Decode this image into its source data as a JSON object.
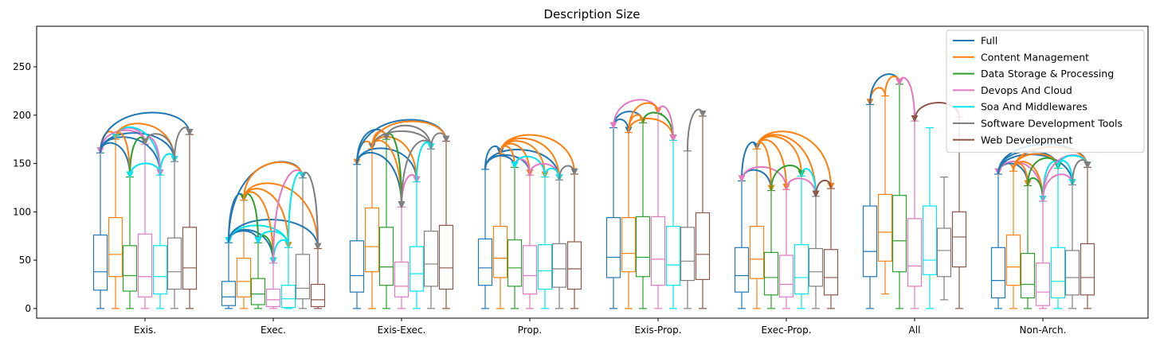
{
  "chart_data": {
    "type": "box",
    "title": "Description Size",
    "xlabel": "",
    "ylabel": "",
    "ylim": [
      -10,
      292
    ],
    "yticks": [
      0,
      50,
      100,
      150,
      200,
      250
    ],
    "categories": [
      "Exis.",
      "Exec.",
      "Exis-Exec.",
      "Prop.",
      "Exis-Prop.",
      "Exec-Prop.",
      "All",
      "Non-Arch."
    ],
    "legend_position": "top-right",
    "series": [
      {
        "name": "Full",
        "color": "#1f77b4",
        "boxes": [
          [
            0,
            19,
            38,
            76,
            161
          ],
          [
            0,
            3,
            12,
            28,
            68
          ],
          [
            0,
            17,
            34,
            70,
            149
          ],
          [
            0,
            24,
            42,
            72,
            144
          ],
          [
            0,
            32,
            53,
            94,
            187
          ],
          [
            0,
            17,
            34,
            63,
            132
          ],
          [
            0,
            33,
            59,
            106,
            211
          ],
          [
            0,
            11,
            29,
            63,
            139
          ]
        ]
      },
      {
        "name": "Content Management",
        "color": "#ff7f0e",
        "boxes": [
          [
            0,
            33,
            56,
            94,
            175
          ],
          [
            0,
            12,
            28,
            52,
            112
          ],
          [
            0,
            38,
            64,
            104,
            165
          ],
          [
            0,
            32,
            52,
            85,
            160
          ],
          [
            0,
            38,
            57,
            94,
            182
          ],
          [
            0,
            31,
            51,
            85,
            165
          ],
          [
            15,
            49,
            79,
            118,
            220
          ],
          [
            0,
            24,
            43,
            76,
            142
          ]
        ]
      },
      {
        "name": "Data Storage & Processing",
        "color": "#2ca02c",
        "boxes": [
          [
            0,
            18,
            34,
            65,
            136
          ],
          [
            0,
            4,
            15,
            31,
            68
          ],
          [
            0,
            24,
            43,
            84,
            175
          ],
          [
            0,
            23,
            42,
            71,
            146
          ],
          [
            0,
            33,
            53,
            95,
            192
          ],
          [
            0,
            14,
            32,
            58,
            122
          ],
          [
            0,
            38,
            70,
            117,
            232
          ],
          [
            0,
            11,
            25,
            57,
            127
          ]
        ]
      },
      {
        "name": "Devops And Cloud",
        "color": "#e377c2",
        "boxes": [
          [
            0,
            12,
            33,
            77,
            170
          ],
          [
            0,
            2,
            9,
            20,
            47
          ],
          [
            0,
            12,
            23,
            48,
            105
          ],
          [
            0,
            15,
            34,
            65,
            138
          ],
          [
            0,
            24,
            51,
            95,
            202
          ],
          [
            0,
            12,
            25,
            55,
            123
          ],
          [
            0,
            23,
            44,
            93,
            194
          ],
          [
            0,
            3,
            17,
            47,
            111
          ]
        ]
      },
      {
        "name": "Soa And Middlewares",
        "color": "#00e5ee",
        "boxes": [
          [
            0,
            15,
            33,
            65,
            138
          ],
          [
            0,
            1,
            10,
            24,
            63
          ],
          [
            0,
            18,
            36,
            64,
            131
          ],
          [
            0,
            20,
            39,
            66,
            136
          ],
          [
            0,
            24,
            45,
            85,
            174
          ],
          [
            0,
            15,
            32,
            66,
            137
          ],
          [
            0,
            35,
            50,
            106,
            187
          ],
          [
            0,
            11,
            28,
            63,
            145
          ]
        ]
      },
      {
        "name": "Software Development Tools",
        "color": "#7f7f7f",
        "boxes": [
          [
            0,
            20,
            38,
            73,
            152
          ],
          [
            0,
            10,
            21,
            56,
            135
          ],
          [
            0,
            23,
            46,
            80,
            165
          ],
          [
            0,
            22,
            41,
            67,
            133
          ],
          [
            0,
            29,
            49,
            84,
            163
          ],
          [
            0,
            23,
            38,
            62,
            116
          ],
          [
            9,
            33,
            60,
            83,
            136
          ],
          [
            0,
            14,
            32,
            60,
            128
          ]
        ]
      },
      {
        "name": "Web Development",
        "color": "#8c564b",
        "boxes": [
          [
            0,
            20,
            42,
            84,
            180
          ],
          [
            0,
            2,
            9,
            25,
            62
          ],
          [
            0,
            20,
            42,
            86,
            173
          ],
          [
            0,
            20,
            41,
            69,
            139
          ],
          [
            0,
            30,
            56,
            99,
            199
          ],
          [
            0,
            14,
            32,
            61,
            124
          ],
          [
            0,
            43,
            74,
            100,
            198
          ],
          [
            0,
            14,
            32,
            67,
            146
          ]
        ]
      }
    ],
    "significance_arrows": [
      [
        [
          0,
          1,
          0
        ],
        [
          0,
          2,
          1
        ],
        [
          0,
          3,
          0
        ],
        [
          0,
          4,
          1
        ],
        [
          0,
          5,
          1
        ],
        [
          0,
          6,
          1
        ],
        [
          1,
          2,
          1
        ],
        [
          1,
          3,
          0
        ],
        [
          1,
          4,
          0
        ],
        [
          1,
          5,
          1
        ],
        [
          2,
          3,
          1
        ],
        [
          2,
          4,
          0
        ],
        [
          3,
          4,
          1
        ],
        [
          3,
          5,
          0
        ],
        [
          4,
          5,
          1
        ],
        [
          5,
          6,
          1
        ]
      ],
      [
        [
          0,
          1,
          1
        ],
        [
          0,
          2,
          1
        ],
        [
          0,
          3,
          1
        ],
        [
          0,
          4,
          0
        ],
        [
          0,
          5,
          1
        ],
        [
          0,
          6,
          1
        ],
        [
          1,
          2,
          0
        ],
        [
          1,
          3,
          1
        ],
        [
          1,
          4,
          1
        ],
        [
          1,
          5,
          1
        ],
        [
          1,
          6,
          1
        ],
        [
          2,
          3,
          1
        ],
        [
          2,
          4,
          0
        ],
        [
          3,
          4,
          0
        ],
        [
          3,
          5,
          1
        ],
        [
          4,
          5,
          1
        ],
        [
          5,
          6,
          1
        ]
      ],
      [
        [
          0,
          1,
          0
        ],
        [
          0,
          2,
          1
        ],
        [
          0,
          3,
          1
        ],
        [
          0,
          4,
          1
        ],
        [
          0,
          6,
          1
        ],
        [
          1,
          2,
          1
        ],
        [
          1,
          3,
          1
        ],
        [
          1,
          4,
          1
        ],
        [
          1,
          5,
          0
        ],
        [
          1,
          6,
          1
        ],
        [
          2,
          3,
          1
        ],
        [
          2,
          5,
          0
        ],
        [
          3,
          4,
          1
        ],
        [
          3,
          5,
          0
        ],
        [
          4,
          5,
          1
        ],
        [
          5,
          6,
          1
        ]
      ],
      [
        [
          0,
          1,
          1
        ],
        [
          0,
          2,
          1
        ],
        [
          0,
          3,
          1
        ],
        [
          0,
          5,
          1
        ],
        [
          1,
          2,
          1
        ],
        [
          1,
          3,
          1
        ],
        [
          1,
          4,
          1
        ],
        [
          1,
          5,
          1
        ],
        [
          1,
          6,
          1
        ],
        [
          2,
          3,
          0
        ],
        [
          2,
          4,
          0
        ],
        [
          3,
          5,
          1
        ],
        [
          4,
          5,
          1
        ],
        [
          5,
          6,
          1
        ]
      ],
      [
        [
          0,
          1,
          1
        ],
        [
          0,
          2,
          1
        ],
        [
          0,
          3,
          0
        ],
        [
          1,
          2,
          1
        ],
        [
          1,
          3,
          1
        ],
        [
          1,
          4,
          1
        ],
        [
          2,
          4,
          1
        ],
        [
          3,
          4,
          1
        ],
        [
          5,
          6,
          1
        ]
      ],
      [
        [
          0,
          1,
          1
        ],
        [
          0,
          2,
          1
        ],
        [
          0,
          3,
          0
        ],
        [
          1,
          2,
          1
        ],
        [
          1,
          3,
          1
        ],
        [
          1,
          4,
          1
        ],
        [
          1,
          5,
          1
        ],
        [
          1,
          6,
          1
        ],
        [
          2,
          4,
          1
        ],
        [
          3,
          5,
          1
        ],
        [
          4,
          5,
          1
        ],
        [
          5,
          6,
          0
        ]
      ],
      [
        [
          0,
          1,
          0
        ],
        [
          0,
          2,
          1
        ],
        [
          1,
          2,
          1
        ],
        [
          2,
          3,
          0
        ],
        [
          3,
          6,
          0
        ]
      ],
      [
        [
          0,
          1,
          0
        ],
        [
          0,
          2,
          1
        ],
        [
          0,
          3,
          0
        ],
        [
          0,
          4,
          1
        ],
        [
          0,
          5,
          1
        ],
        [
          0,
          6,
          1
        ],
        [
          1,
          2,
          1
        ],
        [
          1,
          3,
          1
        ],
        [
          1,
          4,
          1
        ],
        [
          1,
          6,
          1
        ],
        [
          2,
          3,
          1
        ],
        [
          2,
          4,
          1
        ],
        [
          3,
          4,
          0
        ],
        [
          3,
          5,
          1
        ],
        [
          3,
          6,
          1
        ],
        [
          4,
          5,
          1
        ],
        [
          4,
          6,
          1
        ],
        [
          5,
          6,
          1
        ]
      ]
    ]
  }
}
